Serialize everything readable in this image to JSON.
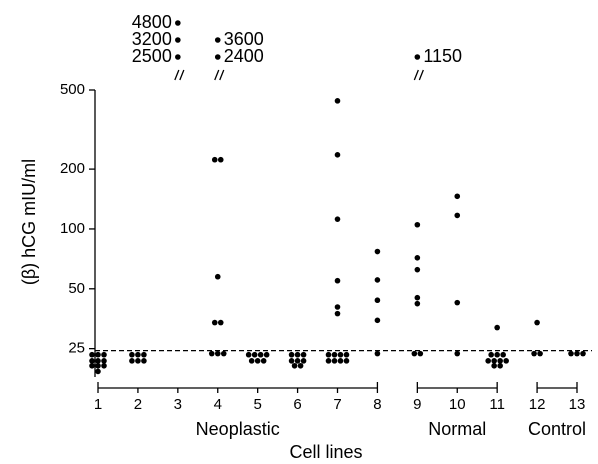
{
  "chart_data": {
    "type": "scatter",
    "ylabel": "(β) hCG mIU/ml",
    "xlabel": "Cell lines",
    "log_y": true,
    "ylim": [
      18,
      500
    ],
    "yticks": [
      25,
      50,
      100,
      200,
      500
    ],
    "xlim": [
      1,
      13
    ],
    "xticks": [
      1,
      2,
      3,
      4,
      5,
      6,
      7,
      8,
      9,
      10,
      11,
      12,
      13
    ],
    "threshold": 25,
    "color": "#000000",
    "series": [
      {
        "x": [
          1,
          1,
          1,
          1,
          1,
          1,
          1,
          1,
          1,
          1,
          2,
          2,
          2,
          2,
          2,
          2,
          4,
          4,
          4,
          4,
          4,
          4,
          4,
          4,
          5,
          5,
          5,
          5,
          5,
          5,
          5,
          6,
          6,
          6,
          6,
          6,
          6,
          6,
          6,
          7,
          7,
          7,
          7,
          7,
          7,
          7,
          7,
          7,
          7,
          7,
          7,
          7,
          7,
          8,
          8,
          8,
          8,
          8,
          9,
          9,
          9,
          9,
          9,
          9,
          9,
          10,
          10,
          10,
          10,
          11,
          11,
          11,
          11,
          11,
          11,
          11,
          11,
          11,
          11,
          12,
          12,
          12,
          13,
          13,
          13
        ],
        "values": [
          23.3,
          23.3,
          23.3,
          21.7,
          21.7,
          21.7,
          20.5,
          20.5,
          20.5,
          19.2,
          23.3,
          23.3,
          23.3,
          21.7,
          21.7,
          21.7,
          23.6,
          23.6,
          23.6,
          33.8,
          33.8,
          57.5,
          223,
          223,
          23.3,
          23.3,
          23.3,
          23.3,
          21.7,
          21.7,
          21.7,
          23.3,
          23.3,
          23.3,
          21.7,
          21.7,
          21.7,
          20.5,
          20.5,
          23.3,
          23.3,
          23.3,
          23.3,
          21.7,
          21.7,
          21.7,
          21.7,
          37.5,
          40.5,
          54.9,
          112,
          236,
          441,
          23.6,
          34.7,
          43.8,
          55.4,
          77,
          23.6,
          23.6,
          42.1,
          45.1,
          62.4,
          71.6,
          105,
          23.6,
          42.6,
          117,
          146,
          23.3,
          23.3,
          23.3,
          21.7,
          21.7,
          21.7,
          21.7,
          20.5,
          20.5,
          31.9,
          23.6,
          23.6,
          33.8,
          23.6,
          23.6,
          23.6
        ]
      }
    ],
    "off_scale": {
      "x": [
        3,
        3,
        3,
        4,
        4,
        9
      ],
      "values": [
        4800,
        3200,
        2500,
        3600,
        2400,
        1150
      ]
    },
    "groups": [
      {
        "label": "Neoplastic",
        "x": [
          1,
          2,
          3,
          4,
          5,
          6,
          7,
          8
        ]
      },
      {
        "label": "Normal",
        "x": [
          9,
          10,
          11
        ]
      },
      {
        "label": "Control",
        "x": [
          12,
          13
        ]
      }
    ]
  }
}
